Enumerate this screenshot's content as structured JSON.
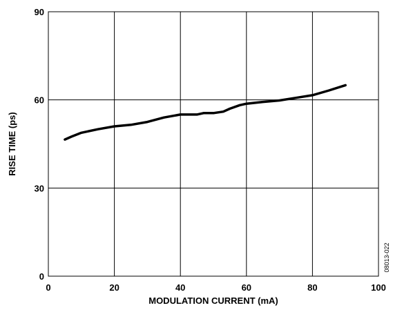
{
  "chart_data": {
    "type": "line",
    "xlabel": "MODULATION CURRENT (mA)",
    "ylabel": "RISE TIME (ps)",
    "xlim": [
      0,
      100
    ],
    "ylim": [
      0,
      90
    ],
    "x_ticks": [
      "0",
      "20",
      "40",
      "60",
      "80",
      "100"
    ],
    "y_ticks": [
      "0",
      "30",
      "60",
      "90"
    ],
    "grid": true,
    "figure_id": "08013-022",
    "series": [
      {
        "color": "#000000",
        "x": [
          5,
          7,
          10,
          15,
          20,
          25,
          30,
          35,
          40,
          45,
          47,
          50,
          53,
          55,
          58,
          60,
          65,
          70,
          75,
          80,
          85,
          90
        ],
        "y": [
          46.5,
          47.5,
          48.8,
          50,
          51,
          51.5,
          52.5,
          54,
          55,
          55,
          55.5,
          55.5,
          56,
          57,
          58.2,
          58.7,
          59.3,
          59.8,
          60.7,
          61.6,
          63.2,
          65
        ]
      }
    ]
  }
}
